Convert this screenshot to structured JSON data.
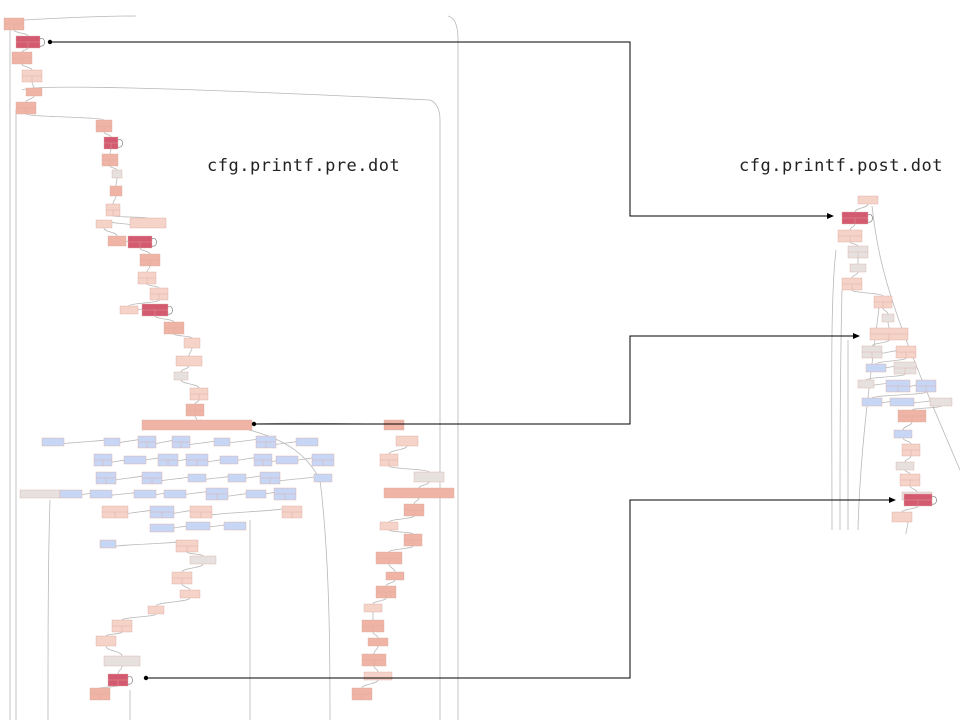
{
  "titles": {
    "pre": "cfg.printf.pre.dot",
    "post": "cfg.printf.post.dot"
  },
  "colors": {
    "node_light": "#f6d3c8",
    "node_mid": "#efb4a6",
    "node_hot": "#d45a72",
    "node_blue": "#c8d6f5",
    "node_gray": "#e6e1df",
    "edge": "#b8b8b8",
    "arrow": "#000000"
  },
  "arrows": [
    {
      "from": "pre-loop-node-1",
      "to": "post-loop-node-1"
    },
    {
      "from": "pre-switch-node",
      "to": "post-switch-node"
    },
    {
      "from": "pre-loop-node-2",
      "to": "post-loop-node-2"
    }
  ]
}
